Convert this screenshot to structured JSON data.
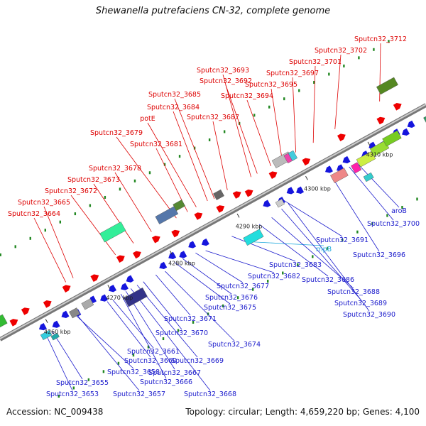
{
  "title": "Shewanella putrefaciens CN-32, complete genome",
  "footer": {
    "accession": "Accession: NC_009438",
    "summary": "Topology: circular; Length: 4,659,220 bp; Genes: 4,100"
  },
  "ticks": [
    {
      "kbp": 4260,
      "label": "4260 kbp"
    },
    {
      "kbp": 4270,
      "label": "4270 kbp"
    },
    {
      "kbp": 4280,
      "label": "4280 kbp"
    },
    {
      "kbp": 4290,
      "label": "4290 kbp"
    },
    {
      "kbp": 4300,
      "label": "4300 kbp"
    },
    {
      "kbp": 4310,
      "label": "4310 kbp"
    }
  ],
  "top_labels": [
    "Sputcn32_3664",
    "Sputcn32_3665",
    "Sputcn32_3672",
    "Sputcn32_3673",
    "Sputcn32_3678",
    "Sputcn32_3679",
    "Sputcn32_3681",
    "potE",
    "Sputcn32_3684",
    "Sputcn32_3685",
    "Sputcn32_3687",
    "Sputcn32_3693",
    "Sputcn32_3692",
    "Sputcn32_3694",
    "Sputcn32_3695",
    "Sputcn32_3697",
    "Sputcn32_3701",
    "Sputcn32_3702",
    "Sputcn32_3712"
  ],
  "bottom_labels": [
    "Sputcn32_3653",
    "Sputcn32_3655",
    "Sputcn32_3657",
    "Sputcn32_3658",
    "Sputcn32_3660",
    "Sputcn32_3661",
    "Sputcn32_3666",
    "Sputcn32_3667",
    "Sputcn32_3668",
    "Sputcn32_3669",
    "Sputcn32_3670",
    "Sputcn32_3671",
    "Sputcn32_3674",
    "Sputcn32_3675",
    "Sputcn32_3676",
    "Sputcn32_3677",
    "Sputcn32_3682",
    "Sputcn32_3683",
    "rnpB",
    "Sputcn32_3686",
    "Sputcn32_3688",
    "Sputcn32_3689",
    "Sputcn32_3690",
    "Sputcn32_3691",
    "Sputcn32_3696",
    "aroB",
    "Sputcn32_3700"
  ],
  "colors": {
    "forward_label": "#dd0000",
    "reverse_label": "#1a1acc",
    "rna_label": "#22aadd",
    "forward_gene": "#ee0000",
    "reverse_gene": "#1515dd",
    "backbone": "#999999",
    "dots": "#228822"
  }
}
